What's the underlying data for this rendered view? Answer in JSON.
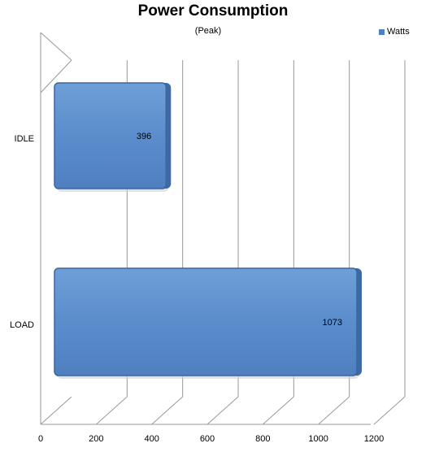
{
  "chart_data": {
    "type": "bar",
    "orientation": "horizontal",
    "title": "Power Consumption",
    "subtitle": "(Peak)",
    "categories": [
      "IDLE",
      "LOAD"
    ],
    "series": [
      {
        "name": "Watts",
        "values": [
          396,
          1073
        ],
        "color": "#4f81bd"
      }
    ],
    "xlim": [
      0,
      1200
    ],
    "xticks": [
      0,
      200,
      400,
      600,
      800,
      1000,
      1200
    ],
    "grid": true,
    "legend": "top-right",
    "data_labels": true,
    "style": "3d"
  }
}
